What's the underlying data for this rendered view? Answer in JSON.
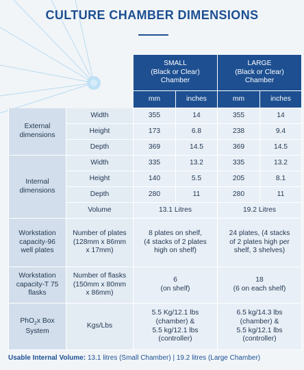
{
  "title": "CULTURE CHAMBER DIMENSIONS",
  "table": {
    "small_header": [
      "SMALL",
      "(Black or Clear)",
      "Chamber"
    ],
    "large_header": [
      "LARGE",
      "(Black or Clear)",
      "Chamber"
    ],
    "unit_mm": "mm",
    "unit_inches": "inches",
    "external": {
      "label": [
        "External",
        "dimensions"
      ],
      "rows": [
        {
          "label": "Width",
          "small_mm": "355",
          "small_in": "14",
          "large_mm": "355",
          "large_in": "14"
        },
        {
          "label": "Height",
          "small_mm": "173",
          "small_in": "6.8",
          "large_mm": "238",
          "large_in": "9.4"
        },
        {
          "label": "Depth",
          "small_mm": "369",
          "small_in": "14.5",
          "large_mm": "369",
          "large_in": "14.5"
        }
      ]
    },
    "internal": {
      "label": [
        "Internal",
        "dimensions"
      ],
      "rows": [
        {
          "label": "Width",
          "small_mm": "335",
          "small_in": "13.2",
          "large_mm": "335",
          "large_in": "13.2"
        },
        {
          "label": "Height",
          "small_mm": "140",
          "small_in": "5.5",
          "large_mm": "205",
          "large_in": "8.1"
        },
        {
          "label": "Depth",
          "small_mm": "280",
          "small_in": "11",
          "large_mm": "280",
          "large_in": "11"
        }
      ],
      "volume": {
        "label": "Volume",
        "small": "13.1 Litres",
        "large": "19.2 Litres"
      }
    },
    "workstation_plates": {
      "label": [
        "Workstation",
        "capacity-96",
        "well plates"
      ],
      "measure": [
        "Number of plates",
        "(128mm x 86mm",
        "x 17mm)"
      ],
      "small": [
        "8 plates on shelf,",
        "(4 stacks of 2 plates",
        "high on shelf)"
      ],
      "large": [
        "24 plates, (4 stacks",
        "of 2 plates high per",
        "shelf, 3 shelves)"
      ]
    },
    "workstation_flasks": {
      "label": [
        "Workstation",
        "capacity-T 75",
        "flasks"
      ],
      "measure": [
        "Number of flasks",
        "(150mm x 80mm",
        "x 86mm)"
      ],
      "small": [
        "6",
        "(on shelf)"
      ],
      "large": [
        "18",
        "(6 on each shelf)"
      ]
    },
    "phox": {
      "label_prefix": "PhO",
      "label_sub": "2",
      "label_suffix": "x Box",
      "label_line2": "System",
      "measure": "Kgs/Lbs",
      "small": [
        "5.5 Kg/12.1 lbs",
        "(chamber) &",
        "5.5 kg/12.1 lbs",
        "(controller)"
      ],
      "large": [
        "6.5 kg/14.3 lbs",
        "(chamber) &",
        "5.5 kg/12.1 lbs",
        "(controller)"
      ]
    }
  },
  "footer": {
    "label": "Usable Internal Volume:",
    "text": " 13.1 litres (Small Chamber)  |  19.2 litres (Large Chamber)"
  },
  "colors": {
    "accent": "#1d4f91",
    "section_bg": "#d2deeb",
    "cell_bg": "#e9eff6",
    "page_bg": "#f1f5f8"
  }
}
